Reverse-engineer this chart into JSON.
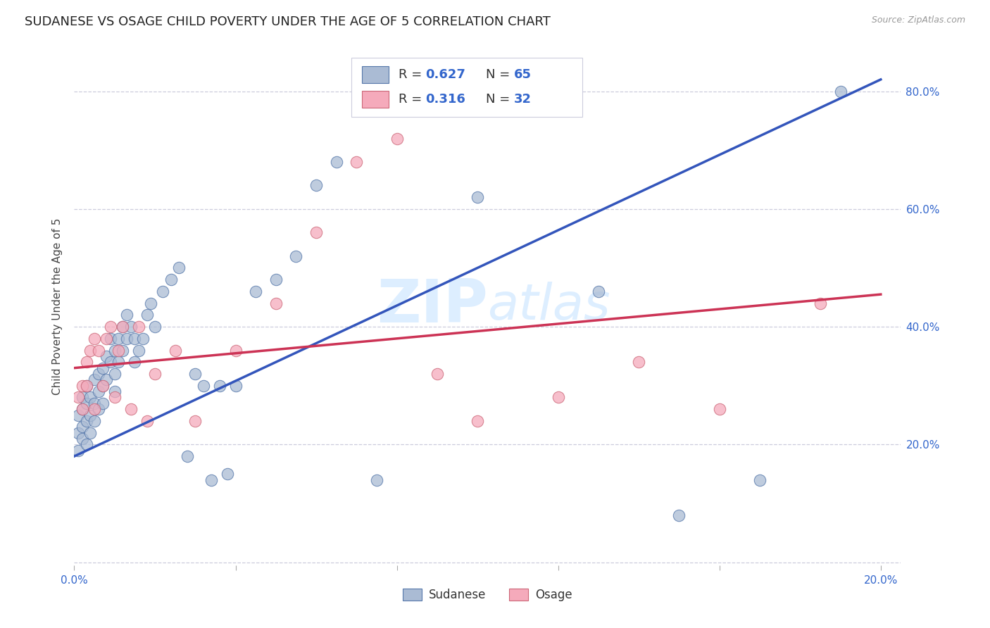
{
  "title": "SUDANESE VS OSAGE CHILD POVERTY UNDER THE AGE OF 5 CORRELATION CHART",
  "source": "Source: ZipAtlas.com",
  "ylabel": "Child Poverty Under the Age of 5",
  "xlim": [
    0.0,
    0.205
  ],
  "ylim": [
    -0.005,
    0.875
  ],
  "legend_r1": "R = 0.627",
  "legend_n1": "N = 65",
  "legend_r2": "R = 0.316",
  "legend_n2": "N = 32",
  "legend_label1": "Sudanese",
  "legend_label2": "Osage",
  "blue_face_color": "#AABBD4",
  "blue_edge_color": "#5577AA",
  "blue_line_color": "#3355BB",
  "pink_face_color": "#F5AABB",
  "pink_edge_color": "#CC6677",
  "pink_line_color": "#CC3355",
  "legend_text_color": "#3366CC",
  "watermark_color": "#DDEEFF",
  "background_color": "#FFFFFF",
  "grid_color": "#CCCCDD",
  "title_fontsize": 13,
  "axis_label_fontsize": 11,
  "tick_fontsize": 11,
  "source_fontsize": 9,
  "blue_line_x0": 0.0,
  "blue_line_y0": 0.18,
  "blue_line_x1": 0.2,
  "blue_line_y1": 0.82,
  "pink_line_x0": 0.0,
  "pink_line_y0": 0.33,
  "pink_line_x1": 0.2,
  "pink_line_y1": 0.455,
  "sudanese_x": [
    0.001,
    0.001,
    0.001,
    0.002,
    0.002,
    0.002,
    0.002,
    0.003,
    0.003,
    0.003,
    0.003,
    0.004,
    0.004,
    0.004,
    0.005,
    0.005,
    0.005,
    0.006,
    0.006,
    0.006,
    0.007,
    0.007,
    0.007,
    0.008,
    0.008,
    0.009,
    0.009,
    0.01,
    0.01,
    0.01,
    0.011,
    0.011,
    0.012,
    0.012,
    0.013,
    0.013,
    0.014,
    0.015,
    0.015,
    0.016,
    0.017,
    0.018,
    0.019,
    0.02,
    0.022,
    0.024,
    0.026,
    0.028,
    0.03,
    0.032,
    0.034,
    0.036,
    0.038,
    0.04,
    0.045,
    0.05,
    0.055,
    0.06,
    0.065,
    0.075,
    0.1,
    0.13,
    0.15,
    0.17,
    0.19
  ],
  "sudanese_y": [
    0.25,
    0.22,
    0.19,
    0.28,
    0.23,
    0.26,
    0.21,
    0.3,
    0.27,
    0.24,
    0.2,
    0.28,
    0.25,
    0.22,
    0.31,
    0.27,
    0.24,
    0.32,
    0.29,
    0.26,
    0.33,
    0.3,
    0.27,
    0.35,
    0.31,
    0.38,
    0.34,
    0.36,
    0.32,
    0.29,
    0.38,
    0.34,
    0.4,
    0.36,
    0.42,
    0.38,
    0.4,
    0.38,
    0.34,
    0.36,
    0.38,
    0.42,
    0.44,
    0.4,
    0.46,
    0.48,
    0.5,
    0.18,
    0.32,
    0.3,
    0.14,
    0.3,
    0.15,
    0.3,
    0.46,
    0.48,
    0.52,
    0.64,
    0.68,
    0.14,
    0.62,
    0.46,
    0.08,
    0.14,
    0.8
  ],
  "osage_x": [
    0.001,
    0.002,
    0.002,
    0.003,
    0.003,
    0.004,
    0.005,
    0.005,
    0.006,
    0.007,
    0.008,
    0.009,
    0.01,
    0.011,
    0.012,
    0.014,
    0.016,
    0.018,
    0.02,
    0.025,
    0.03,
    0.04,
    0.05,
    0.06,
    0.07,
    0.08,
    0.09,
    0.1,
    0.12,
    0.14,
    0.16,
    0.185
  ],
  "osage_y": [
    0.28,
    0.3,
    0.26,
    0.34,
    0.3,
    0.36,
    0.38,
    0.26,
    0.36,
    0.3,
    0.38,
    0.4,
    0.28,
    0.36,
    0.4,
    0.26,
    0.4,
    0.24,
    0.32,
    0.36,
    0.24,
    0.36,
    0.44,
    0.56,
    0.68,
    0.72,
    0.32,
    0.24,
    0.28,
    0.34,
    0.26,
    0.44
  ]
}
